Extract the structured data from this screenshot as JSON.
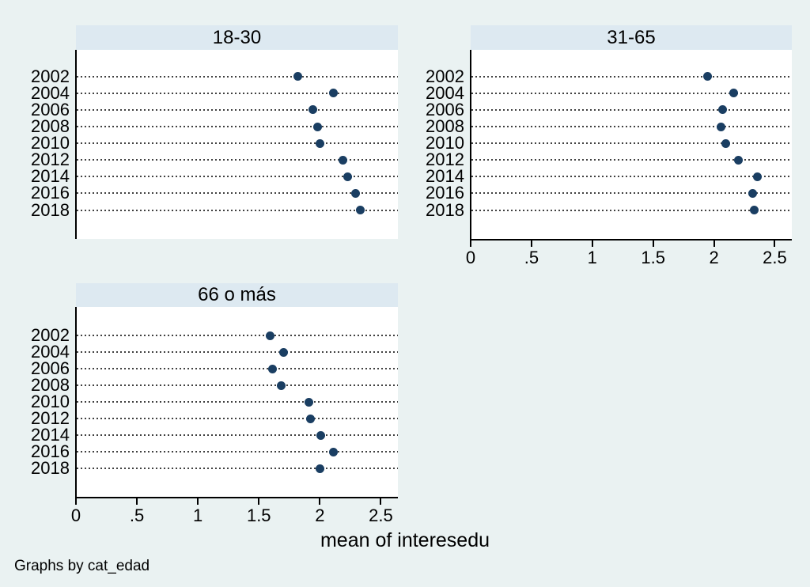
{
  "figure": {
    "background": "#eaf2f2",
    "panel_header_bg": "#dde9f1",
    "plot_bg": "#ffffff",
    "axis_color": "#000000",
    "grid_dot_color": "#404040",
    "marker_color": "#1a3e62"
  },
  "chart_data": {
    "type": "scatter",
    "subtype": "horizontal-dot-plot-small-multiples",
    "categories": [
      "2002",
      "2004",
      "2006",
      "2008",
      "2010",
      "2012",
      "2014",
      "2016",
      "2018"
    ],
    "series": [
      {
        "name": "18-30",
        "values": [
          1.82,
          2.11,
          1.94,
          1.98,
          2.0,
          2.19,
          2.23,
          2.29,
          2.33
        ]
      },
      {
        "name": "31-65",
        "values": [
          1.95,
          2.16,
          2.07,
          2.06,
          2.1,
          2.2,
          2.36,
          2.32,
          2.33
        ]
      },
      {
        "name": "66 o más",
        "values": [
          1.59,
          1.7,
          1.61,
          1.68,
          1.91,
          1.92,
          2.01,
          2.11,
          2.0
        ]
      }
    ],
    "x_ticks": [
      "0",
      ".5",
      "1",
      "1.5",
      "2",
      "2.5"
    ],
    "x_tick_values": [
      0,
      0.5,
      1,
      1.5,
      2,
      2.5
    ],
    "xlim": [
      0,
      2.64
    ],
    "xlabel": "mean of interesedu",
    "note": "Graphs by cat_edad",
    "grid": "dotted-horizontal",
    "legend": "none"
  }
}
